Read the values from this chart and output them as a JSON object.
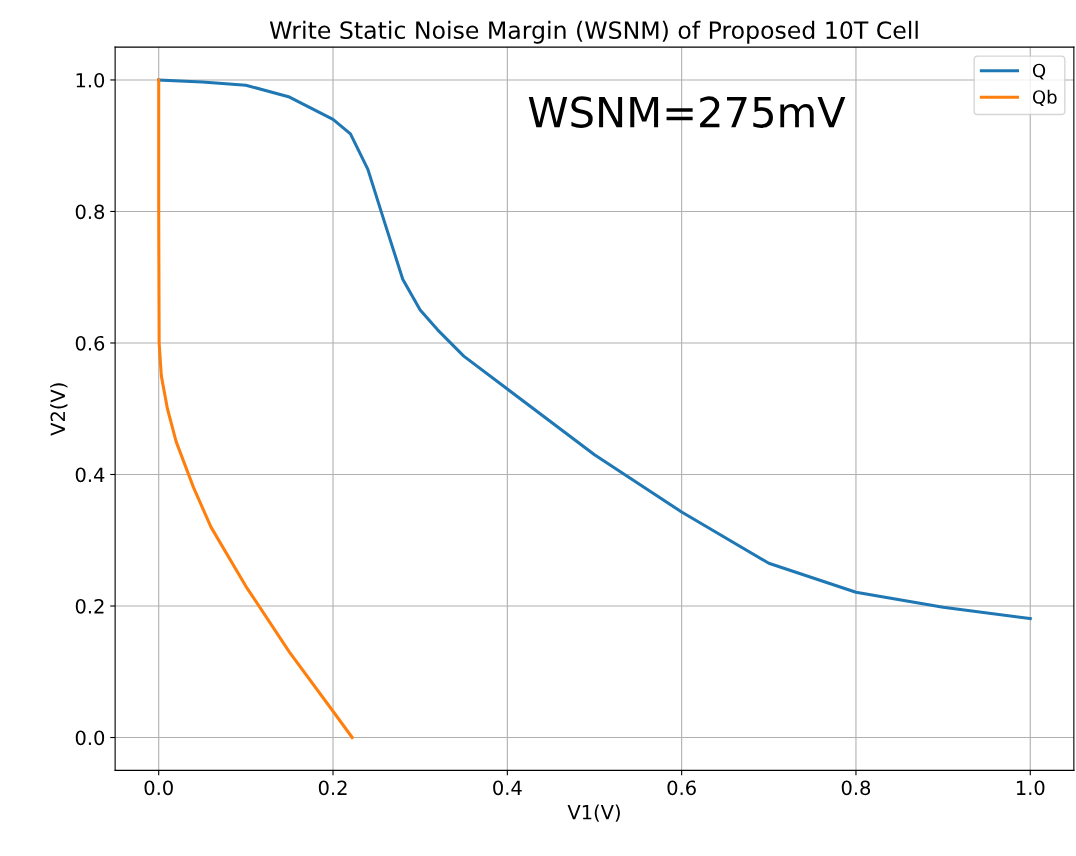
{
  "chart_data": {
    "type": "line",
    "title": "Write Static Noise Margin (WSNM) of Proposed 10T Cell",
    "xlabel": "V1(V)",
    "ylabel": "V2(V)",
    "series": [
      {
        "name": "Q",
        "color": "#1f77b4",
        "x": [
          0,
          0.05,
          0.1,
          0.15,
          0.2,
          0.22,
          0.24,
          0.26,
          0.28,
          0.3,
          0.32,
          0.35,
          0.4,
          0.5,
          0.6,
          0.7,
          0.8,
          0.9,
          1.0
        ],
        "values": [
          1.0,
          0.997,
          0.992,
          0.974,
          0.94,
          0.918,
          0.864,
          0.78,
          0.697,
          0.65,
          0.62,
          0.58,
          0.53,
          0.43,
          0.343,
          0.265,
          0.221,
          0.198,
          0.181
        ]
      },
      {
        "name": "Qb",
        "color": "#ff7f0e",
        "x": [
          0,
          0,
          0.0005,
          0.003,
          0.01,
          0.02,
          0.04,
          0.06,
          0.1,
          0.15,
          0.2,
          0.222
        ],
        "values": [
          1.0,
          0.8,
          0.6,
          0.55,
          0.5,
          0.45,
          0.38,
          0.32,
          0.23,
          0.13,
          0.04,
          0.0
        ]
      }
    ],
    "annotations": [
      "WSNM=275mV"
    ],
    "xlim": [
      -0.05,
      1.05
    ],
    "ylim": [
      -0.05,
      1.05
    ],
    "xticks": [
      {
        "value": 0,
        "label": "0.0"
      },
      0.2,
      0.4,
      0.6,
      0.8,
      {
        "value": 1,
        "label": "1.0"
      }
    ],
    "yticks": [
      {
        "value": 0,
        "label": "0.0"
      },
      0.2,
      0.4,
      0.6,
      0.8,
      {
        "value": 1,
        "label": "1.0"
      }
    ],
    "grid": true,
    "legend": "top right"
  }
}
